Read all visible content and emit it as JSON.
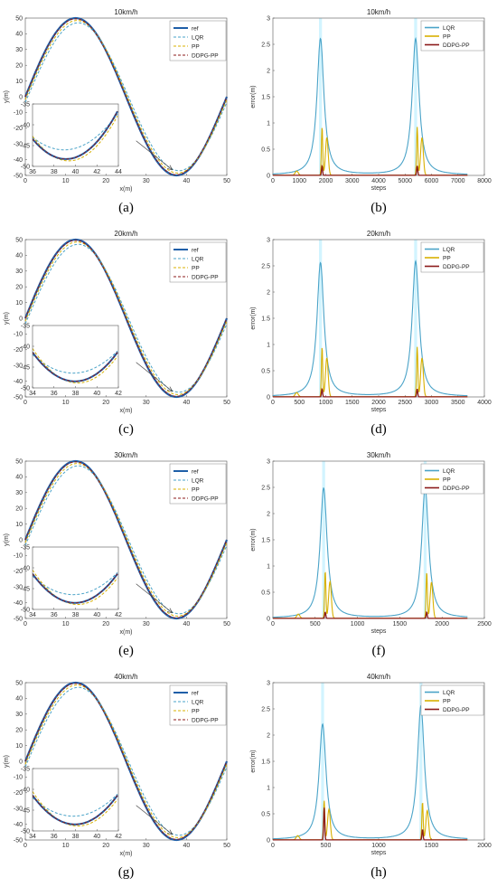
{
  "colors": {
    "ref": "#1f5fa8",
    "LQR": "#4aa3c8",
    "PP": "#d8b000",
    "DDPG-PP": "#8b1a1a",
    "shade": "#bfefff"
  },
  "chart_data": [
    {
      "id": "a",
      "type": "line",
      "caption": "(a)",
      "title": "10km/h",
      "xlabel": "x(m)",
      "ylabel": "y(m)",
      "xlim": [
        0,
        50
      ],
      "ylim": [
        -50,
        50
      ],
      "xticks": [
        "0",
        "10",
        "20",
        "30",
        "40",
        "50"
      ],
      "yticks": [
        "-50",
        "-40",
        "-30",
        "-20",
        "-10",
        "0",
        "10",
        "20",
        "30",
        "40",
        "50"
      ],
      "legend": [
        "ref",
        "LQR",
        "PP",
        "DDPG-PP"
      ],
      "inset": {
        "xlim": [
          34.5,
          44
        ],
        "ylim": [
          -52,
          -35
        ],
        "xticks": [
          "36",
          "38",
          "40",
          "42",
          "44"
        ],
        "yticks": [
          "-50",
          "-45",
          "-40",
          "-35"
        ]
      }
    },
    {
      "id": "b",
      "type": "line",
      "caption": "(b)",
      "title": "10km/h",
      "xlabel": "steps",
      "ylabel": "error(m)",
      "xlim": [
        0,
        8000
      ],
      "ylim": [
        0,
        3
      ],
      "xticks": [
        "0",
        "1000",
        "2000",
        "3000",
        "4000",
        "5000",
        "6000",
        "7000",
        "8000"
      ],
      "yticks": [
        "0",
        "0.5",
        "1",
        "1.5",
        "2",
        "2.5",
        "3"
      ],
      "legend": [
        "LQR",
        "PP",
        "DDPG-PP"
      ],
      "peaks": [
        1800,
        5400
      ],
      "lqr_peak": [
        2.6,
        2.6
      ],
      "pp_peak": [
        0.92,
        0.92
      ],
      "ddpg_peak": [
        0.18,
        0.18
      ]
    },
    {
      "id": "c",
      "type": "line",
      "caption": "(c)",
      "title": "20km/h",
      "xlabel": "x(m)",
      "ylabel": "y(m)",
      "xlim": [
        0,
        50
      ],
      "ylim": [
        -50,
        50
      ],
      "xticks": [
        "0",
        "10",
        "20",
        "30",
        "40",
        "50"
      ],
      "yticks": [
        "-50",
        "-40",
        "-30",
        "-20",
        "-10",
        "0",
        "10",
        "20",
        "30",
        "40",
        "50"
      ],
      "legend": [
        "ref",
        "LQR",
        "PP",
        "DDPG-PP"
      ],
      "inset": {
        "xlim": [
          33.5,
          43
        ],
        "ylim": [
          -52,
          -33
        ],
        "xticks": [
          "34",
          "36",
          "38",
          "40",
          "42"
        ],
        "yticks": [
          "-50",
          "-45",
          "-40",
          "-35"
        ]
      }
    },
    {
      "id": "d",
      "type": "line",
      "caption": "(d)",
      "title": "20km/h",
      "xlabel": "steps",
      "ylabel": "error(m)",
      "xlim": [
        0,
        4000
      ],
      "ylim": [
        0,
        3
      ],
      "xticks": [
        "0",
        "500",
        "1000",
        "1500",
        "2000",
        "2500",
        "3000",
        "3500",
        "4000"
      ],
      "yticks": [
        "0",
        "0.5",
        "1",
        "1.5",
        "2",
        "2.5",
        "3"
      ],
      "legend": [
        "LQR",
        "PP",
        "DDPG-PP"
      ],
      "peaks": [
        900,
        2700
      ],
      "lqr_peak": [
        2.55,
        2.58
      ],
      "pp_peak": [
        0.95,
        0.95
      ],
      "ddpg_peak": [
        0.15,
        0.15
      ]
    },
    {
      "id": "e",
      "type": "line",
      "caption": "(e)",
      "title": "30km/h",
      "xlabel": "x(m)",
      "ylabel": "y(m)",
      "xlim": [
        0,
        50
      ],
      "ylim": [
        -50,
        50
      ],
      "xticks": [
        "0",
        "10",
        "20",
        "30",
        "40",
        "50"
      ],
      "yticks": [
        "-50",
        "-40",
        "-30",
        "-20",
        "-10",
        "0",
        "10",
        "20",
        "30",
        "40",
        "50"
      ],
      "legend": [
        "ref",
        "LQR",
        "PP",
        "DDPG-PP"
      ],
      "inset": {
        "xlim": [
          33.5,
          43
        ],
        "ylim": [
          -52,
          -33
        ],
        "xticks": [
          "34",
          "36",
          "38",
          "40",
          "42"
        ],
        "yticks": [
          "-50",
          "-45",
          "-40",
          "-35"
        ]
      }
    },
    {
      "id": "f",
      "type": "line",
      "caption": "(f)",
      "title": "30km/h",
      "xlabel": "steps",
      "ylabel": "error(m)",
      "xlim": [
        0,
        2500
      ],
      "ylim": [
        0,
        3
      ],
      "xticks": [
        "0",
        "500",
        "1000",
        "1500",
        "2000",
        "2500"
      ],
      "yticks": [
        "0",
        "0.5",
        "1",
        "1.5",
        "2",
        "2.5",
        "3"
      ],
      "legend": [
        "LQR",
        "PP",
        "DDPG-PP"
      ],
      "peaks": [
        600,
        1800
      ],
      "lqr_peak": [
        2.48,
        2.5
      ],
      "pp_peak": [
        0.9,
        0.88
      ],
      "ddpg_peak": [
        0.12,
        0.12
      ]
    },
    {
      "id": "g",
      "type": "line",
      "caption": "(g)",
      "title": "40km/h",
      "xlabel": "x(m)",
      "ylabel": "y(m)",
      "xlim": [
        0,
        50
      ],
      "ylim": [
        -50,
        50
      ],
      "xticks": [
        "0",
        "10",
        "20",
        "30",
        "40",
        "50"
      ],
      "yticks": [
        "-50",
        "-40",
        "-30",
        "-20",
        "-10",
        "0",
        "10",
        "20",
        "30",
        "40",
        "50"
      ],
      "legend": [
        "ref",
        "LQR",
        "PP",
        "DDPG-PP"
      ],
      "inset": {
        "xlim": [
          33.5,
          43
        ],
        "ylim": [
          -52,
          -33
        ],
        "xticks": [
          "34",
          "36",
          "38",
          "40",
          "42"
        ],
        "yticks": [
          "-50",
          "-45",
          "-40",
          "-35"
        ]
      }
    },
    {
      "id": "h",
      "type": "line",
      "caption": "(h)",
      "title": "40km/h",
      "xlabel": "steps",
      "ylabel": "error(m)",
      "xlim": [
        0,
        2000
      ],
      "ylim": [
        0,
        3
      ],
      "xticks": [
        "0",
        "500",
        "1000",
        "1500",
        "2000"
      ],
      "yticks": [
        "0",
        "0.5",
        "1",
        "1.5",
        "2",
        "2.5",
        "3"
      ],
      "legend": [
        "LQR",
        "PP",
        "DDPG-PP"
      ],
      "peaks": [
        470,
        1400
      ],
      "lqr_peak": [
        2.2,
        2.55
      ],
      "pp_peak": [
        0.75,
        0.72
      ],
      "ddpg_peak": [
        0.62,
        0.2
      ]
    }
  ]
}
